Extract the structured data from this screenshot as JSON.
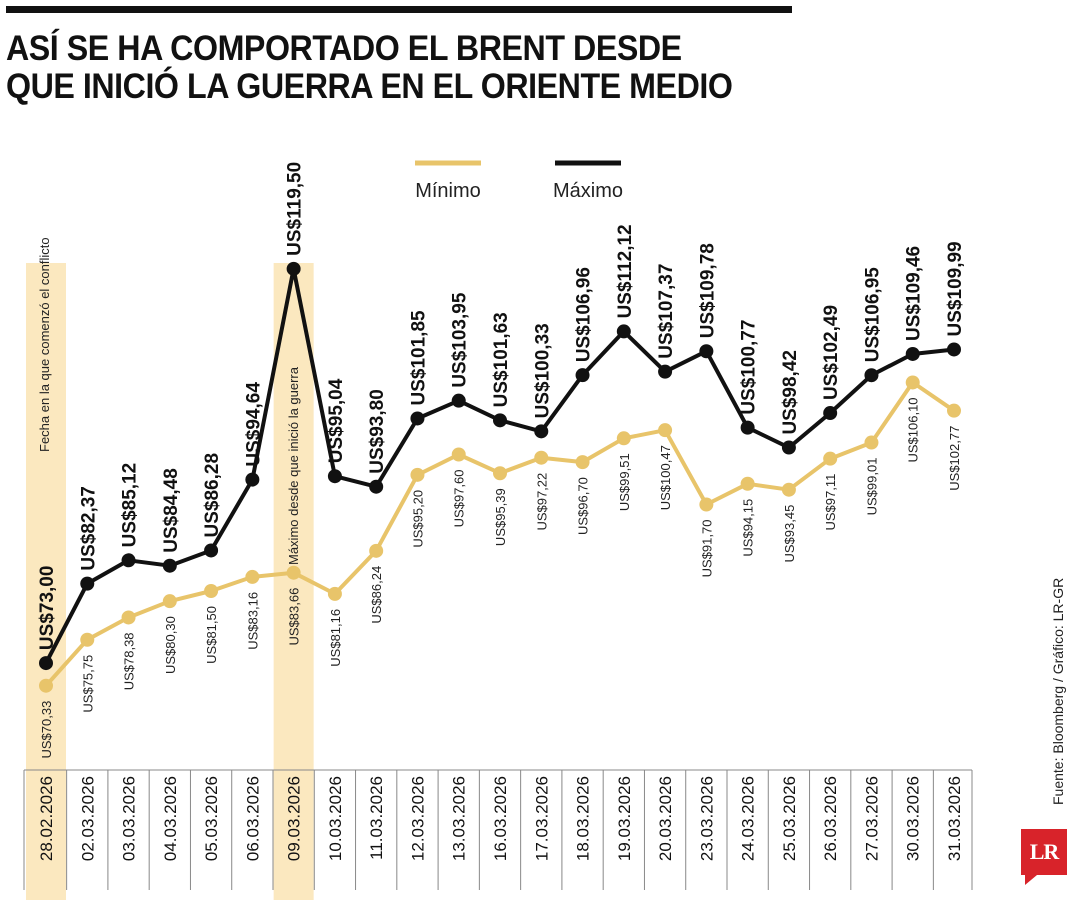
{
  "header": {
    "title_line1": "ASÍ SE HA COMPORTADO EL BRENT DESDE",
    "title_line2": "QUE INICIÓ LA GUERRA EN EL ORIENTE MEDIO"
  },
  "source": "Fuente: Bloomberg / Gráfico: LR-GR",
  "logo": "LR",
  "colors": {
    "minimo": "#e8c46a",
    "maximo": "#111111",
    "highlight": "#fbe8bf",
    "axis": "#888888"
  },
  "chart_data": {
    "type": "line",
    "x": [
      "28.02.2026",
      "02.03.2026",
      "03.03.2026",
      "04.03.2026",
      "05.03.2026",
      "06.03.2026",
      "09.03.2026",
      "10.03.2026",
      "11.03.2026",
      "12.03.2026",
      "13.03.2026",
      "16.03.2026",
      "17.03.2026",
      "18.03.2026",
      "19.03.2026",
      "20.03.2026",
      "23.03.2026",
      "24.03.2026",
      "25.03.2026",
      "26.03.2026",
      "27.03.2026",
      "30.03.2026",
      "31.03.2026"
    ],
    "series": [
      {
        "name": "Máximo",
        "values": [
          73.0,
          82.37,
          85.12,
          84.48,
          86.28,
          94.64,
          119.5,
          95.04,
          93.8,
          101.85,
          103.95,
          101.63,
          100.33,
          106.96,
          112.12,
          107.37,
          109.78,
          100.77,
          98.42,
          102.49,
          106.95,
          109.46,
          109.99
        ],
        "labels": [
          "US$73,00",
          "US$82,37",
          "US$85,12",
          "US$84,48",
          "US$86,28",
          "US$94,64",
          "US$119,50",
          "US$95,04",
          "US$93,80",
          "US$101,85",
          "US$103,95",
          "US$101,63",
          "US$100,33",
          "US$106,96",
          "US$112,12",
          "US$107,37",
          "US$109,78",
          "US$100,77",
          "US$98,42",
          "US$102,49",
          "US$106,95",
          "US$109,46",
          "US$109,99"
        ]
      },
      {
        "name": "Mínimo",
        "values": [
          70.33,
          75.75,
          78.38,
          80.3,
          81.5,
          83.16,
          83.66,
          81.16,
          86.24,
          95.2,
          97.6,
          95.39,
          97.22,
          96.7,
          99.51,
          100.47,
          91.7,
          94.15,
          93.45,
          97.11,
          99.01,
          106.1,
          102.77
        ],
        "labels": [
          "US$70,33",
          "US$75,75",
          "US$78,38",
          "US$80,30",
          "US$81,50",
          "US$83,16",
          "US$83,66",
          "US$81,16",
          "US$86,24",
          "US$95,20",
          "US$97,60",
          "US$95,39",
          "US$97,22",
          "US$96,70",
          "US$99,51",
          "US$100,47",
          "US$91,70",
          "US$94,15",
          "US$93,45",
          "US$97,11",
          "US$99,01",
          "US$106,10",
          "US$102,77"
        ]
      }
    ],
    "highlights": [
      0,
      6
    ],
    "annotations": [
      {
        "index": 0,
        "text": "Fecha en la que comenzó el conflicto"
      },
      {
        "index": 6,
        "text": "Máximo desde que inició la guerra"
      }
    ],
    "legend": {
      "position": "top-center",
      "order": [
        "Mínimo",
        "Máximo"
      ]
    },
    "grid": false
  }
}
